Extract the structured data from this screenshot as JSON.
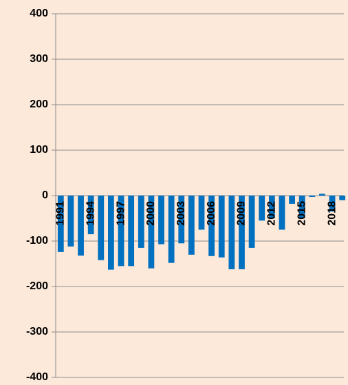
{
  "chart_data": {
    "type": "bar",
    "categories": [
      "1991",
      null,
      null,
      "1994",
      null,
      null,
      "1997",
      null,
      null,
      "2000",
      null,
      null,
      "2003",
      null,
      null,
      "2006",
      null,
      null,
      "2009",
      null,
      null,
      "2012",
      null,
      null,
      "2015",
      null,
      null,
      "2018",
      null
    ],
    "values": [
      -124,
      -112,
      -132,
      -85,
      -142,
      -163,
      -155,
      -155,
      -115,
      -160,
      -107,
      -148,
      -105,
      -130,
      -75,
      -133,
      -136,
      -162,
      -162,
      -115,
      -55,
      -50,
      -75,
      -18,
      -50,
      -3,
      4,
      -35,
      -10
    ],
    "color": "#0070c0",
    "ylim": [
      -400,
      400
    ],
    "yticks": [
      -400,
      -300,
      -200,
      -100,
      0,
      100,
      200,
      300,
      400
    ],
    "grid": true
  }
}
